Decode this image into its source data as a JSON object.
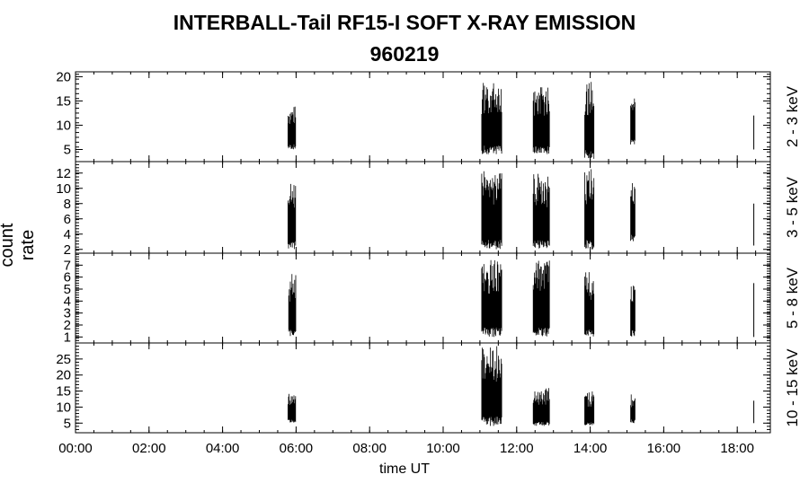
{
  "header": {
    "title": "INTERBALL-Tail RF15-I SOFT X-RAY EMISSION",
    "subtitle": "960219"
  },
  "chart_data": {
    "type": "bar",
    "title": "INTERBALL-Tail RF15-I SOFT X-RAY EMISSION",
    "subtitle": "960219",
    "xlabel": "time UT",
    "ylabel": "count rate",
    "x_unit": "hours UT",
    "xlim": [
      0,
      18.9
    ],
    "x_ticks": [
      "00:00",
      "02:00",
      "04:00",
      "06:00",
      "08:00",
      "10:00",
      "12:00",
      "14:00",
      "16:00",
      "18:00"
    ],
    "grid": false,
    "colors": {
      "line": "#000000"
    },
    "panels": [
      {
        "label": "2 - 3 keV",
        "ylim": [
          2.5,
          21
        ],
        "y_ticks": [
          5,
          10,
          15,
          20
        ],
        "bursts": [
          {
            "start": 5.78,
            "end": 6.0,
            "min": 5,
            "max": 14
          },
          {
            "start": 11.05,
            "end": 11.6,
            "min": 4,
            "max": 19
          },
          {
            "start": 12.45,
            "end": 12.9,
            "min": 4,
            "max": 18
          },
          {
            "start": 13.85,
            "end": 14.1,
            "min": 3,
            "max": 19
          },
          {
            "start": 15.1,
            "end": 15.22,
            "min": 6,
            "max": 16
          }
        ],
        "marker": {
          "x": 18.45,
          "min": 5,
          "max": 12
        }
      },
      {
        "label": "3 - 5 keV",
        "ylim": [
          1.5,
          13.5
        ],
        "y_ticks": [
          2,
          4,
          6,
          8,
          10,
          12
        ],
        "bursts": [
          {
            "start": 5.78,
            "end": 6.0,
            "min": 2,
            "max": 11
          },
          {
            "start": 11.05,
            "end": 11.6,
            "min": 2,
            "max": 12.5
          },
          {
            "start": 12.45,
            "end": 12.9,
            "min": 2,
            "max": 12
          },
          {
            "start": 13.85,
            "end": 14.1,
            "min": 2,
            "max": 12.5
          },
          {
            "start": 15.1,
            "end": 15.22,
            "min": 3,
            "max": 11
          }
        ],
        "marker": {
          "x": 18.45,
          "min": 2.5,
          "max": 8
        }
      },
      {
        "label": "5 - 8 keV",
        "ylim": [
          0.5,
          8
        ],
        "y_ticks": [
          1,
          2,
          3,
          4,
          5,
          6,
          7
        ],
        "bursts": [
          {
            "start": 5.8,
            "end": 6.0,
            "min": 1,
            "max": 6.3
          },
          {
            "start": 11.05,
            "end": 11.6,
            "min": 1,
            "max": 7.5
          },
          {
            "start": 12.45,
            "end": 12.9,
            "min": 1,
            "max": 7.5
          },
          {
            "start": 13.85,
            "end": 14.1,
            "min": 1,
            "max": 6.6
          },
          {
            "start": 15.1,
            "end": 15.22,
            "min": 1,
            "max": 5.6
          }
        ],
        "marker": {
          "x": 18.45,
          "min": 1,
          "max": 5.5
        }
      },
      {
        "label": "10 - 15 keV",
        "ylim": [
          2,
          30
        ],
        "y_ticks": [
          5,
          10,
          15,
          20,
          25
        ],
        "bursts": [
          {
            "start": 5.78,
            "end": 6.0,
            "min": 5,
            "max": 15
          },
          {
            "start": 11.05,
            "end": 11.6,
            "min": 4,
            "max": 29
          },
          {
            "start": 12.45,
            "end": 12.9,
            "min": 4,
            "max": 16
          },
          {
            "start": 13.85,
            "end": 14.1,
            "min": 4,
            "max": 15
          },
          {
            "start": 15.1,
            "end": 15.22,
            "min": 5,
            "max": 14
          }
        ],
        "marker": {
          "x": 18.45,
          "min": 5,
          "max": 12
        }
      }
    ]
  }
}
